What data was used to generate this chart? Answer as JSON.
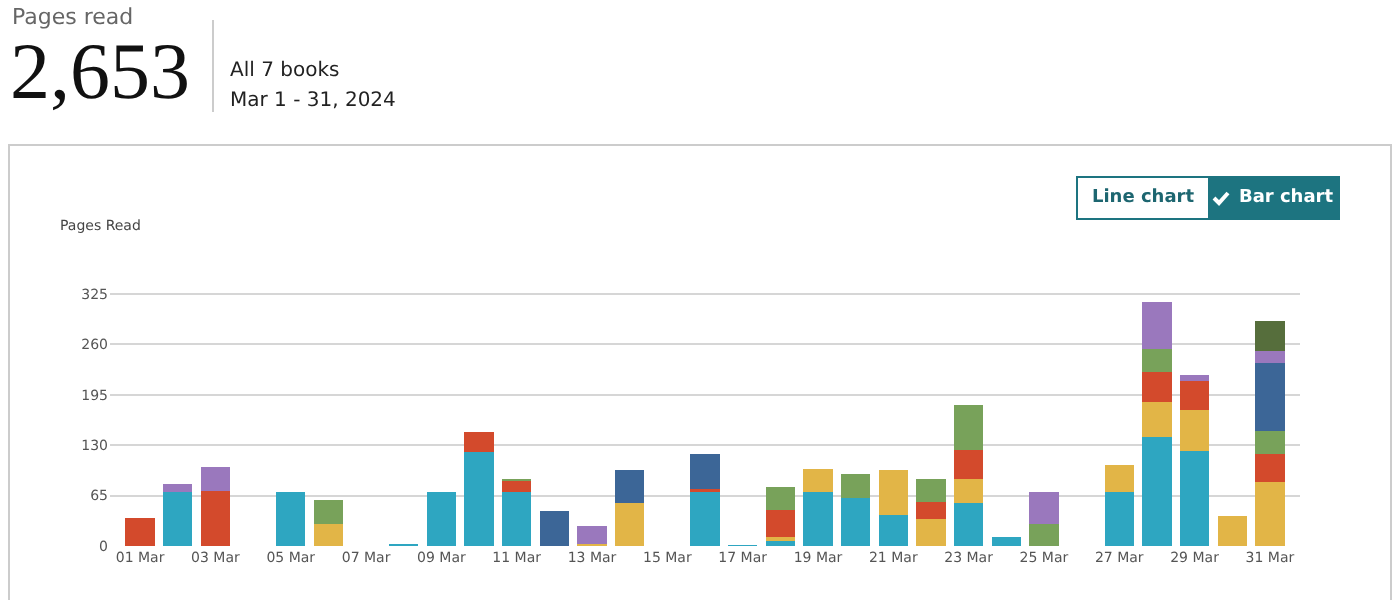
{
  "chart_data": {
    "type": "bar",
    "title": "Pages read",
    "ylabel": "Pages Read",
    "annotations": [
      "2,653",
      "All 7 books",
      "Mar 1 - 31, 2024",
      "Line chart",
      "Bar chart"
    ],
    "categories": [
      "01 Mar",
      null,
      "03 Mar",
      null,
      "05 Mar",
      null,
      "07 Mar",
      null,
      "09 Mar",
      null,
      "11 Mar",
      null,
      "13 Mar",
      null,
      "15 Mar",
      null,
      "17 Mar",
      null,
      "19 Mar",
      null,
      "21 Mar",
      null,
      "23 Mar",
      null,
      "25 Mar",
      null,
      "27 Mar",
      null,
      "29 Mar",
      null,
      "31 Mar"
    ],
    "stacked": true,
    "ylim": [
      0,
      330
    ],
    "yticks": [
      0,
      65,
      130,
      195,
      260,
      325
    ],
    "grid": "y",
    "series": [
      {
        "color": "#2ea6c1",
        "values": [
          null,
          69,
          null,
          null,
          69,
          null,
          null,
          3,
          70,
          121,
          70,
          null,
          null,
          null,
          null,
          70,
          1,
          6,
          70,
          62,
          40,
          null,
          55,
          12,
          null,
          null,
          69,
          140,
          122,
          null,
          null
        ]
      },
      {
        "color": "#e2b547",
        "values": [
          null,
          null,
          null,
          null,
          null,
          28,
          null,
          null,
          null,
          null,
          null,
          null,
          2,
          55,
          null,
          null,
          null,
          6,
          29,
          null,
          58,
          35,
          32,
          null,
          null,
          null,
          35,
          46,
          53,
          39,
          82
        ]
      },
      {
        "color": "#d34a2c",
        "values": [
          36,
          null,
          71,
          null,
          null,
          null,
          null,
          null,
          null,
          26,
          14,
          null,
          null,
          null,
          null,
          4,
          null,
          35,
          null,
          null,
          null,
          22,
          37,
          null,
          null,
          null,
          null,
          38,
          38,
          null,
          37
        ]
      },
      {
        "color": "#78a25a",
        "values": [
          null,
          null,
          null,
          null,
          null,
          31,
          null,
          null,
          null,
          null,
          3,
          null,
          null,
          null,
          null,
          null,
          null,
          29,
          null,
          31,
          null,
          30,
          58,
          null,
          28,
          null,
          null,
          30,
          null,
          null,
          29
        ]
      },
      {
        "color": "#3c6697",
        "values": [
          null,
          null,
          null,
          null,
          null,
          null,
          null,
          null,
          null,
          null,
          null,
          45,
          null,
          43,
          null,
          44,
          null,
          null,
          null,
          null,
          null,
          null,
          null,
          null,
          null,
          null,
          null,
          null,
          null,
          null,
          88
        ]
      },
      {
        "color": "#9a78bd",
        "values": [
          null,
          11,
          31,
          null,
          null,
          null,
          null,
          null,
          null,
          null,
          null,
          null,
          24,
          null,
          null,
          null,
          null,
          null,
          null,
          null,
          null,
          null,
          null,
          null,
          41,
          null,
          null,
          61,
          8,
          null,
          15
        ]
      },
      {
        "color": "#566e3c",
        "values": [
          null,
          null,
          null,
          null,
          null,
          null,
          null,
          null,
          null,
          null,
          null,
          null,
          null,
          null,
          null,
          null,
          null,
          null,
          null,
          null,
          null,
          null,
          null,
          null,
          null,
          null,
          null,
          null,
          null,
          null,
          39
        ]
      }
    ]
  }
}
